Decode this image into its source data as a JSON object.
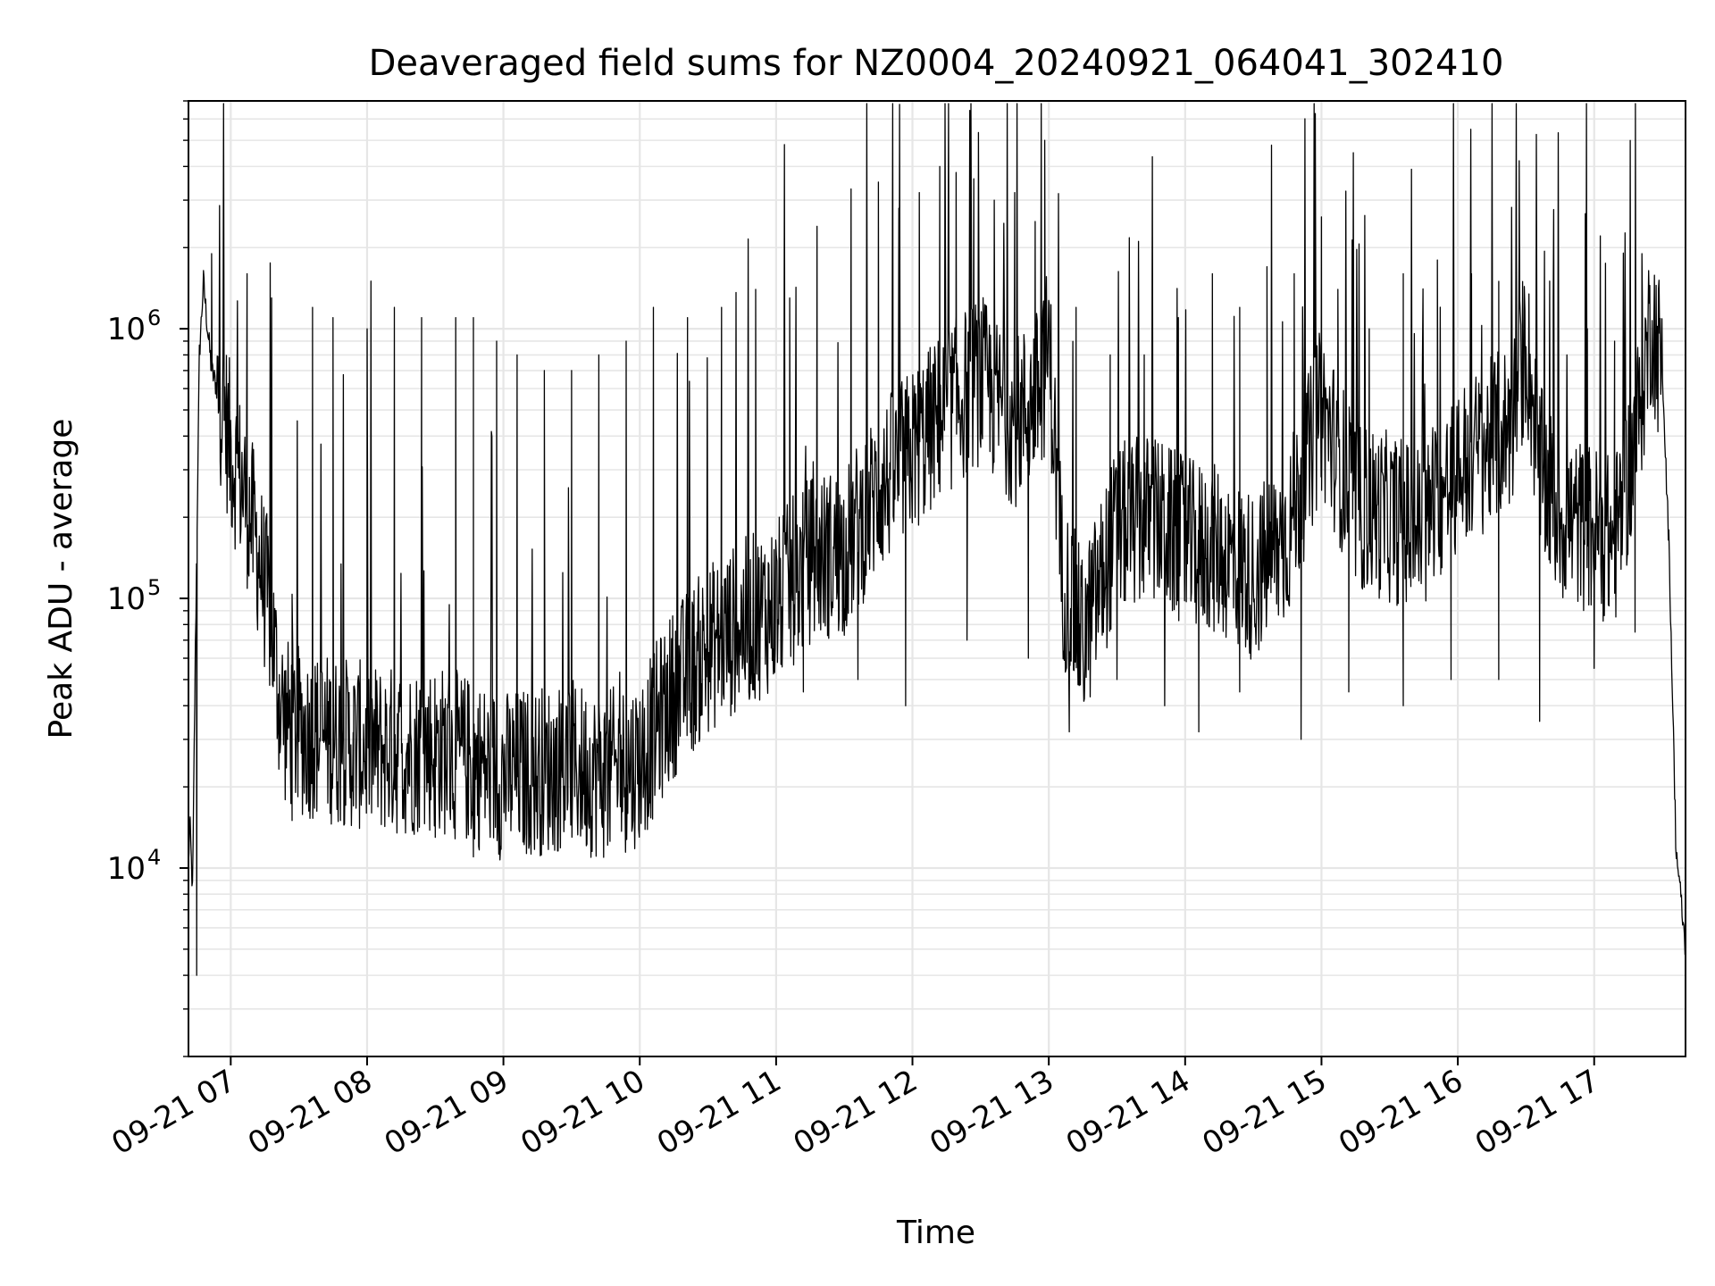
{
  "chart_data": {
    "type": "line",
    "title": "Deaveraged field sums for NZ0004_20240921_064041_302410",
    "xlabel": "Time",
    "ylabel": "Peak ADU - average",
    "x_tick_labels": [
      "09-21 07",
      "09-21 08",
      "09-21 09",
      "09-21 10",
      "09-21 11",
      "09-21 12",
      "09-21 13",
      "09-21 14",
      "09-21 15",
      "09-21 16",
      "09-21 17"
    ],
    "x_tick_hours": [
      7,
      8,
      9,
      10,
      11,
      12,
      13,
      14,
      15,
      16,
      17
    ],
    "x_date": "2024-09-21",
    "xlim_hours": [
      6.69,
      17.67
    ],
    "y_scale": "log",
    "ylim": [
      2000,
      7000000
    ],
    "y_tick_values": [
      10000,
      100000,
      1000000
    ],
    "y_tick_labels": [
      {
        "base": "10",
        "exp": "4"
      },
      {
        "base": "10",
        "exp": "5"
      },
      {
        "base": "10",
        "exp": "6"
      }
    ],
    "grid": true,
    "line_color": "#000000",
    "series": [
      {
        "hours": [
          6.69,
          6.7,
          6.72,
          6.74,
          6.77,
          6.8,
          6.83,
          6.86,
          6.9,
          6.95,
          7.0,
          7.1,
          7.2,
          7.3,
          7.35,
          7.4,
          7.5,
          7.75,
          8.0,
          8.25,
          8.5,
          8.75,
          9.0,
          9.25,
          9.5,
          9.75,
          10.0,
          10.25,
          10.5,
          10.75,
          11.0,
          11.25,
          11.5,
          11.75,
          12.0,
          12.25,
          12.5,
          12.75,
          12.95,
          13.0,
          13.1,
          13.25,
          13.5,
          13.75,
          14.0,
          14.25,
          14.5,
          14.75,
          15.0,
          15.25,
          15.5,
          15.75,
          16.0,
          16.25,
          16.4,
          16.5,
          16.6,
          16.75,
          17.0,
          17.15,
          17.3,
          17.42,
          17.5,
          17.55,
          17.6,
          17.67
        ],
        "values": [
          10000,
          15000,
          8000,
          60000,
          800000,
          1500000,
          1000000,
          700000,
          600000,
          500000,
          350000,
          250000,
          150000,
          80000,
          45000,
          35000,
          32000,
          30000,
          28000,
          27000,
          28000,
          25000,
          22000,
          23000,
          24000,
          22000,
          25000,
          45000,
          65000,
          80000,
          95000,
          140000,
          150000,
          250000,
          350000,
          500000,
          650000,
          450000,
          600000,
          900000,
          120000,
          70000,
          180000,
          200000,
          160000,
          150000,
          120000,
          170000,
          500000,
          220000,
          200000,
          180000,
          300000,
          380000,
          450000,
          900000,
          300000,
          200000,
          180000,
          160000,
          380000,
          1100000,
          700000,
          150000,
          12000,
          5000
        ],
        "peak_hours": [
          6.86,
          7.12,
          7.3,
          7.6,
          7.75,
          8.0,
          8.2,
          8.4,
          8.65,
          8.78,
          8.95,
          9.1,
          9.3,
          9.5,
          9.7,
          9.9,
          10.1,
          10.35,
          10.6,
          10.85,
          11.1,
          11.3,
          11.55,
          11.75,
          11.9,
          12.05,
          12.2,
          12.32,
          12.45,
          12.6,
          12.75,
          12.9,
          12.97,
          13.2,
          13.45,
          13.7,
          13.95,
          14.2,
          14.4,
          14.6,
          14.8,
          15.0,
          15.12,
          15.35,
          15.6,
          15.85,
          16.1,
          16.3,
          16.45,
          16.7,
          16.95,
          17.15,
          17.35
        ],
        "peak_values": [
          1900000,
          1600000,
          1300000,
          1200000,
          1100000,
          1000000,
          1200000,
          1100000,
          1100000,
          1100000,
          900000,
          800000,
          700000,
          700000,
          800000,
          900000,
          1200000,
          1100000,
          1200000,
          1400000,
          1300000,
          2400000,
          3300000,
          3500000,
          2800000,
          3200000,
          4000000,
          3800000,
          3600000,
          3000000,
          3200000,
          2500000,
          5000000,
          1200000,
          800000,
          800000,
          1100000,
          1600000,
          1200000,
          1700000,
          1600000,
          2600000,
          1400000,
          1000000,
          1600000,
          1800000,
          1600000,
          1500000,
          4200000,
          1300000,
          1000000,
          900000,
          1900000
        ],
        "trough_hours": [
          6.75,
          7.45,
          7.9,
          8.5,
          8.78,
          9.2,
          9.6,
          9.95,
          10.4,
          10.8,
          11.2,
          11.6,
          11.95,
          12.4,
          12.85,
          13.15,
          13.5,
          13.85,
          14.1,
          14.4,
          14.85,
          15.2,
          15.6,
          15.95,
          16.3,
          16.6,
          17.0,
          17.3
        ],
        "trough_values": [
          4000,
          15000,
          17000,
          13000,
          11000,
          13000,
          15000,
          15000,
          34000,
          45000,
          45000,
          50000,
          40000,
          70000,
          60000,
          32000,
          50000,
          40000,
          32000,
          45000,
          30000,
          45000,
          40000,
          50000,
          50000,
          35000,
          55000,
          75000
        ]
      }
    ]
  }
}
